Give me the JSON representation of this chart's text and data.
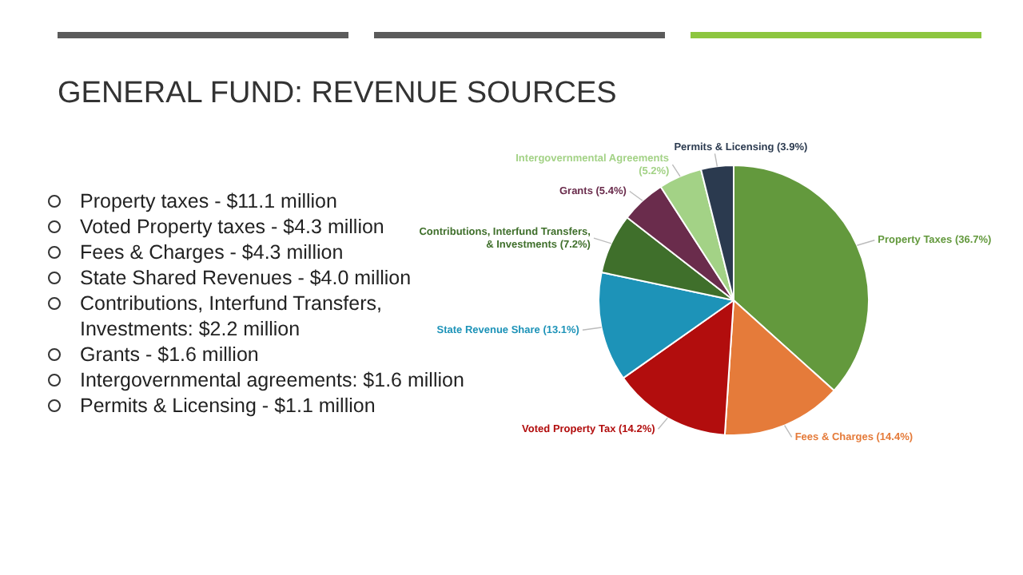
{
  "chart_data": {
    "type": "pie",
    "title": "GENERAL FUND: REVENUE SOURCES",
    "categories": [
      "Property Taxes",
      "Fees & Charges",
      "Voted Property Tax",
      "State Revenue Share",
      "Contributions, Interfund Transfers, & Investments",
      "Grants",
      "Intergovernmental Agreements",
      "Permits & Licensing"
    ],
    "values": [
      36.7,
      14.4,
      14.2,
      13.1,
      7.2,
      5.4,
      5.2,
      3.9
    ],
    "value_labels": [
      "(36.7%)",
      "(14.4%)",
      "(14.2%)",
      "(13.1%)",
      "(7.2%)",
      "(5.4%)",
      "(5.2%)",
      "(3.9%)"
    ],
    "colors": [
      "#63993d",
      "#e57b3a",
      "#b20d0d",
      "#1d93b8",
      "#3f6f2b",
      "#6a2c4c",
      "#a3d286",
      "#2b3a4f"
    ],
    "annotations": [
      "Property taxes - $11.1 million",
      "Voted Property taxes - $4.3 million",
      "Fees & Charges - $4.3 million",
      "State Shared Revenues - $4.0 million",
      "Contributions, Interfund Transfers, Investments: $2.2 million",
      "Grants - $1.6 million",
      "Intergovernmental agreements: $1.6 million",
      "Permits & Licensing - $1.1 million"
    ]
  }
}
